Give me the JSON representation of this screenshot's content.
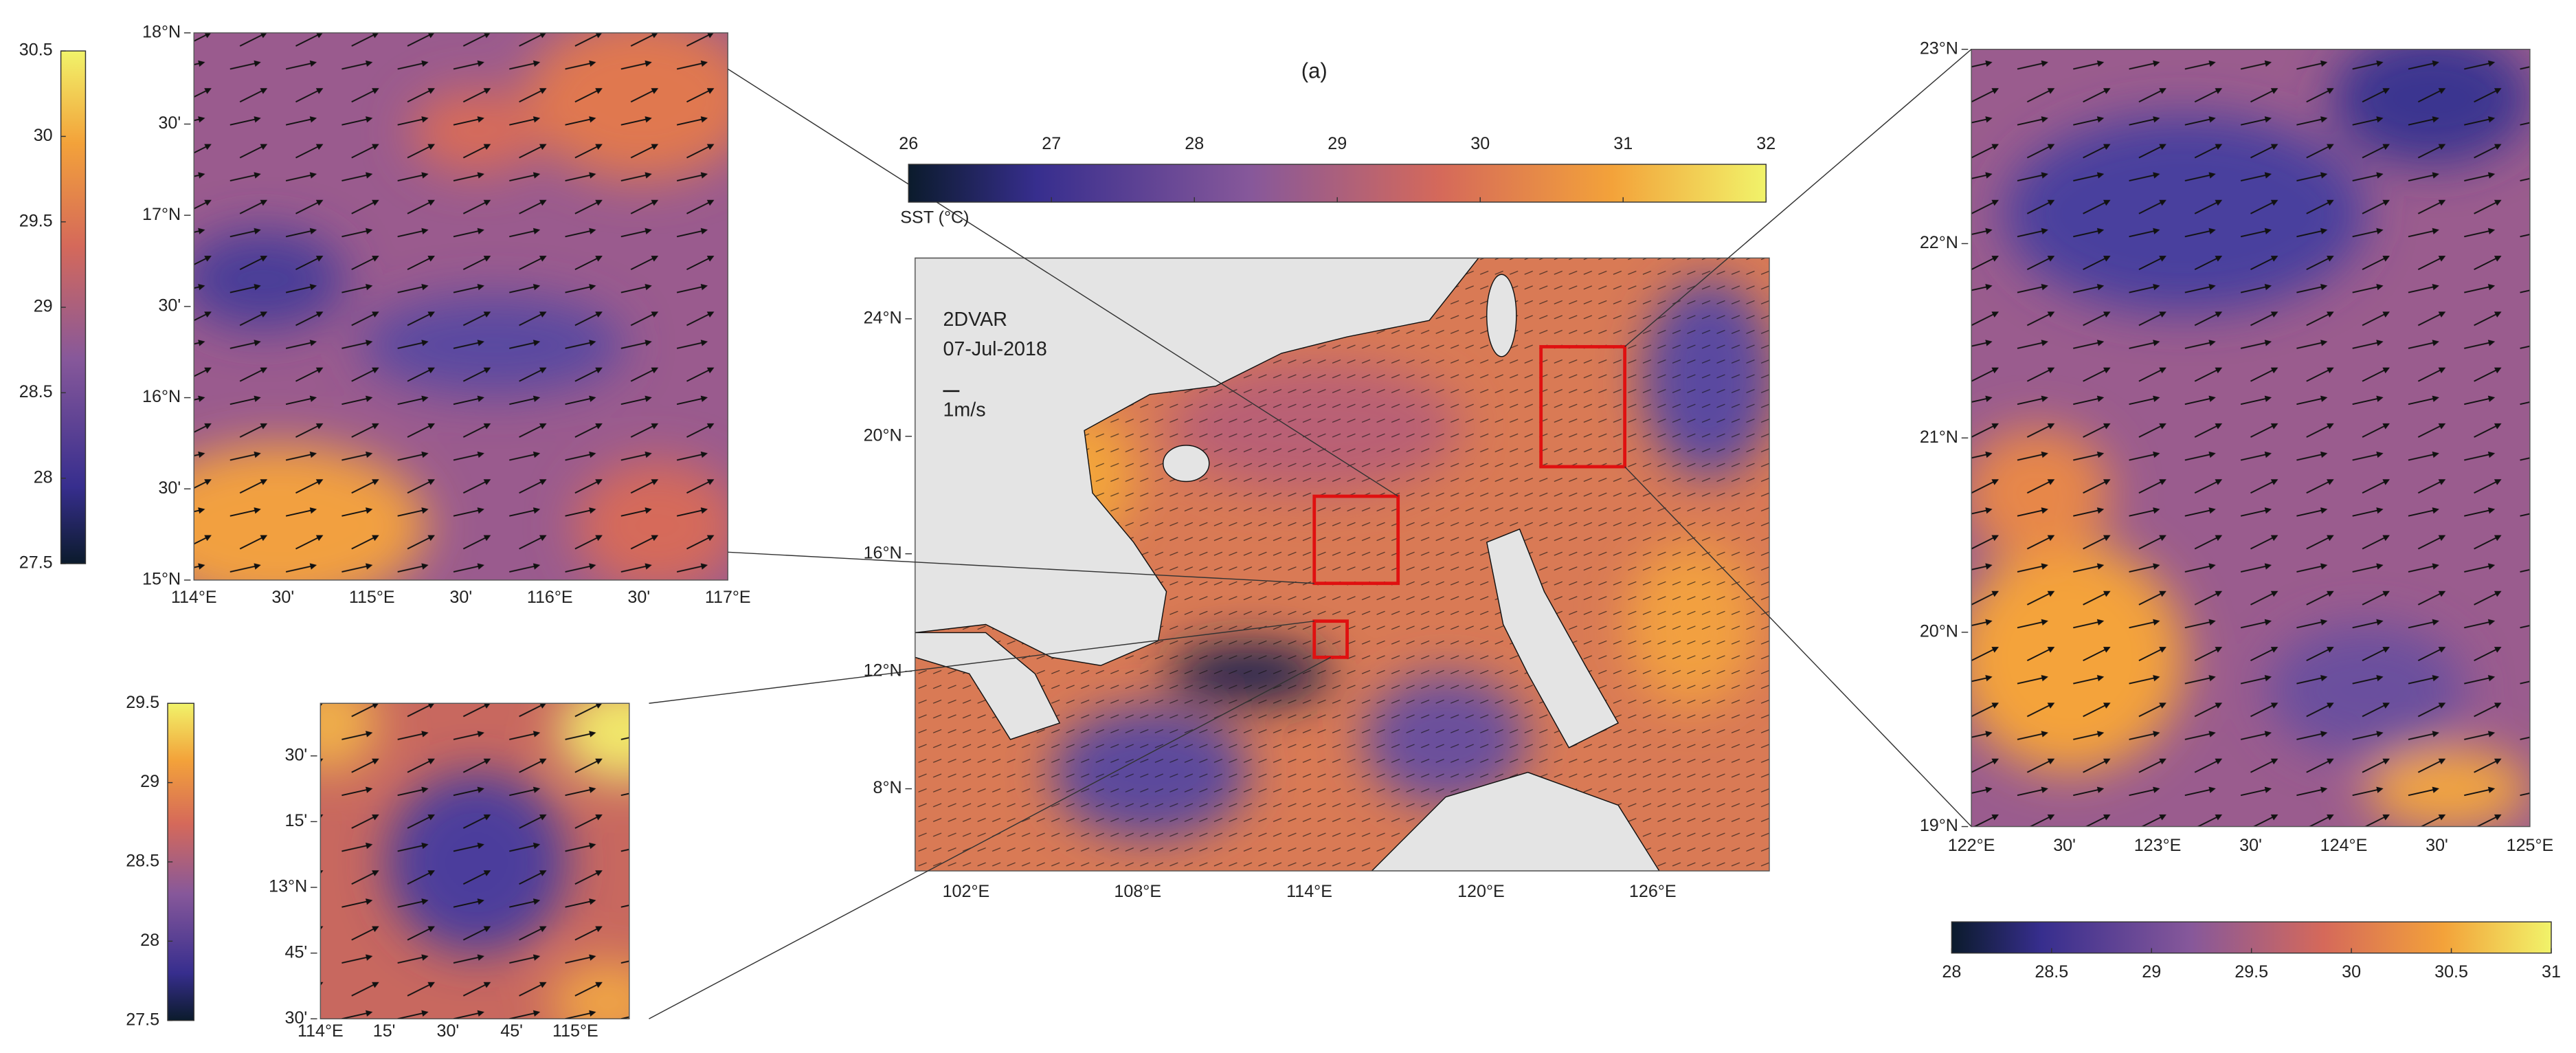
{
  "panel_label": "(a)",
  "main_map": {
    "method": "2DVAR",
    "date": "07-Jul-2018",
    "scale_label": "1m/s",
    "lat_labels": [
      "24°N",
      "20°N",
      "16°N",
      "12°N",
      "8°N"
    ],
    "lon_labels": [
      "102°E",
      "108°E",
      "114°E",
      "120°E",
      "126°E"
    ]
  },
  "main_colorbar": {
    "label": "SST (°C)",
    "ticks": [
      26,
      27,
      28,
      29,
      30,
      31,
      32
    ]
  },
  "inset_north": {
    "lat_labels": [
      "18°N",
      "30'",
      "17°N",
      "30'",
      "16°N",
      "30'",
      "15°N"
    ],
    "lon_labels": [
      "114°E",
      "30'",
      "115°E",
      "30'",
      "116°E",
      "30'",
      "117°E"
    ]
  },
  "colorbar_north": {
    "ticks": [
      27.5,
      28,
      28.5,
      29,
      29.5,
      30,
      30.5
    ]
  },
  "inset_south": {
    "lat_labels": [
      "30'",
      "15'",
      "13°N",
      "45'",
      "30'"
    ],
    "lon_labels": [
      "114°E",
      "15'",
      "30'",
      "45'",
      "115°E"
    ]
  },
  "colorbar_south": {
    "ticks": [
      27.5,
      28,
      28.5,
      29,
      29.5
    ]
  },
  "inset_east": {
    "lat_labels": [
      "23°N",
      "22°N",
      "21°N",
      "20°N",
      "19°N"
    ],
    "lon_labels": [
      "122°E",
      "30'",
      "123°E",
      "30'",
      "124°E",
      "30'",
      "125°E"
    ]
  },
  "colorbar_east": {
    "ticks": [
      28,
      28.5,
      29,
      29.5,
      30,
      30.5,
      31
    ]
  }
}
